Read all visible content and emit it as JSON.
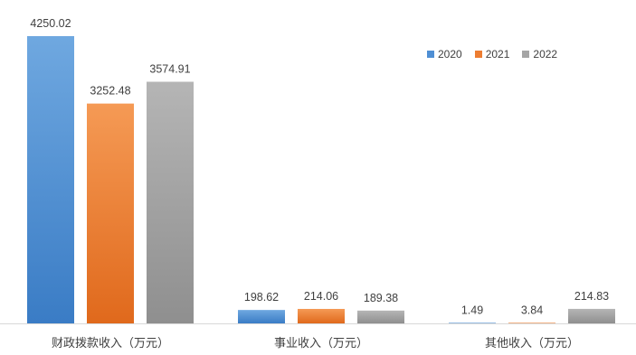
{
  "chart_data": {
    "type": "bar",
    "categories": [
      "财政拨款收入（万元）",
      "事业收入（万元）",
      "其他收入（万元）"
    ],
    "series": [
      {
        "name": "2020",
        "color": "#4f8fd4",
        "values": [
          4250.02,
          198.62,
          1.49
        ]
      },
      {
        "name": "2021",
        "color": "#ed7d31",
        "values": [
          3252.48,
          214.06,
          3.84
        ]
      },
      {
        "name": "2022",
        "color": "#a5a5a5",
        "values": [
          3574.91,
          189.38,
          214.83
        ]
      }
    ],
    "value_labels": [
      [
        "4250.02",
        "198.62",
        "1.49"
      ],
      [
        "3252.48",
        "214.06",
        "3.84"
      ],
      [
        "3574.91",
        "189.38",
        "214.83"
      ]
    ],
    "ylim": [
      0,
      4250.02
    ],
    "grid": false,
    "legend_position": "top-right"
  }
}
